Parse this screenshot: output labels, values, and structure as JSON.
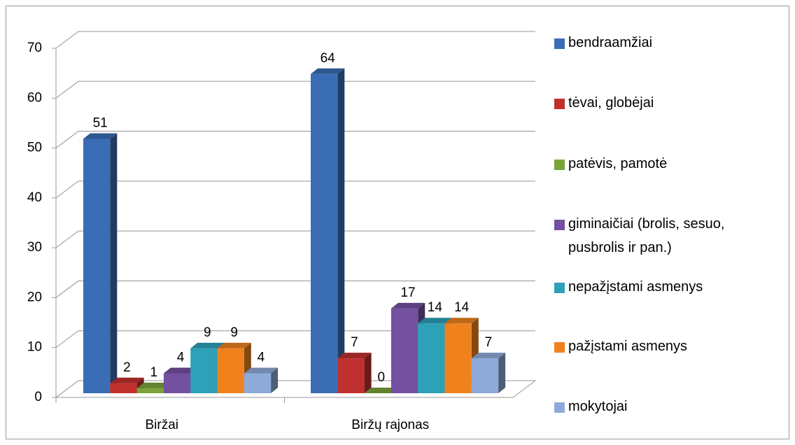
{
  "chart_data": {
    "type": "bar3d",
    "categories": [
      "Biržai",
      "Biržų rajonas"
    ],
    "series": [
      {
        "name": "bendraamžiai",
        "color": "#3a6db3",
        "values": [
          51,
          64
        ]
      },
      {
        "name": "tėvai, globėjai",
        "color": "#c0302e",
        "values": [
          2,
          7
        ]
      },
      {
        "name": "patėvis, pamotė",
        "color": "#7ba33a",
        "values": [
          1,
          0
        ]
      },
      {
        "name": "giminaičiai (brolis, sesuo, pusbrolis ir pan.)",
        "color": "#7450a0",
        "values": [
          4,
          17
        ]
      },
      {
        "name": "nepažįstami asmenys",
        "color": "#2ea0b8",
        "values": [
          9,
          14
        ]
      },
      {
        "name": "pažįstami asmenys",
        "color": "#f0821e",
        "values": [
          9,
          14
        ]
      },
      {
        "name": "mokytojai",
        "color": "#8eaad8",
        "values": [
          4,
          7
        ]
      }
    ],
    "ylim": [
      0,
      70
    ],
    "yticks": [
      0,
      10,
      20,
      30,
      40,
      50,
      60,
      70
    ],
    "grid": true,
    "legend": "right"
  }
}
